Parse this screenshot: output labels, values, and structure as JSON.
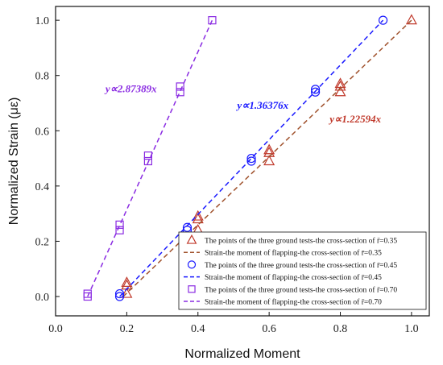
{
  "chart_data": {
    "type": "scatter",
    "xlabel": "Normalized  Moment",
    "ylabel": "Normalized Strain (με)",
    "xlim": [
      0.0,
      1.05
    ],
    "ylim": [
      -0.07,
      1.05
    ],
    "x_ticks": [
      "0.0",
      "0.2",
      "0.4",
      "0.6",
      "0.8",
      "1.0"
    ],
    "y_ticks": [
      "0.0",
      "0.2",
      "0.4",
      "0.6",
      "0.8",
      "1.0"
    ],
    "grid": false,
    "legend_position": "bottom-right",
    "series": [
      {
        "name": "The points of the three ground tests-the cross-section of r̄=0.35",
        "kind": "points",
        "marker": "triangle",
        "color": "#c0392b",
        "x": [
          0.2,
          0.2,
          0.2,
          0.4,
          0.4,
          0.4,
          0.6,
          0.6,
          0.6,
          0.8,
          0.8,
          0.8,
          1.0
        ],
        "y": [
          0.01,
          0.04,
          0.05,
          0.24,
          0.28,
          0.29,
          0.49,
          0.52,
          0.53,
          0.74,
          0.76,
          0.77,
          1.0
        ]
      },
      {
        "name": "Strain-the moment of flapping-the cross-section of r̄=0.35",
        "kind": "line",
        "color": "#a0522d",
        "x": [
          0.19,
          1.0
        ],
        "y": [
          0.0,
          1.0
        ]
      },
      {
        "name": "The points of the three ground tests-the cross-section of r̄=0.45",
        "kind": "points",
        "marker": "circle",
        "color": "#1a1aff",
        "x": [
          0.18,
          0.18,
          0.37,
          0.37,
          0.55,
          0.55,
          0.73,
          0.73,
          0.92
        ],
        "y": [
          0.0,
          0.01,
          0.24,
          0.25,
          0.49,
          0.5,
          0.74,
          0.75,
          1.0
        ]
      },
      {
        "name": "Strain-the moment of flapping-the cross-section of r̄=0.45",
        "kind": "line",
        "color": "#1a1aff",
        "x": [
          0.18,
          0.92
        ],
        "y": [
          0.0,
          1.0
        ]
      },
      {
        "name": "The points of the three ground tests-the cross-section of r̄=0.70",
        "kind": "points",
        "marker": "square",
        "color": "#8a2be2",
        "x": [
          0.09,
          0.09,
          0.18,
          0.18,
          0.26,
          0.26,
          0.35,
          0.35,
          0.44
        ],
        "y": [
          0.0,
          0.01,
          0.24,
          0.26,
          0.49,
          0.51,
          0.74,
          0.76,
          1.0
        ]
      },
      {
        "name": "Strain-the moment of flapping-the cross-section of r̄=0.70",
        "kind": "line",
        "color": "#8a2be2",
        "x": [
          0.09,
          0.44
        ],
        "y": [
          0.0,
          1.0
        ]
      }
    ],
    "annotations": [
      {
        "text": "y∝2.87389x",
        "color": "#8a2be2",
        "x": 0.14,
        "y": 0.74
      },
      {
        "text": "y∝1.36376x",
        "color": "#1a1aff",
        "x": 0.51,
        "y": 0.68
      },
      {
        "text": "y∝1.22594x",
        "color": "#c0392b",
        "x": 0.77,
        "y": 0.63
      }
    ]
  }
}
